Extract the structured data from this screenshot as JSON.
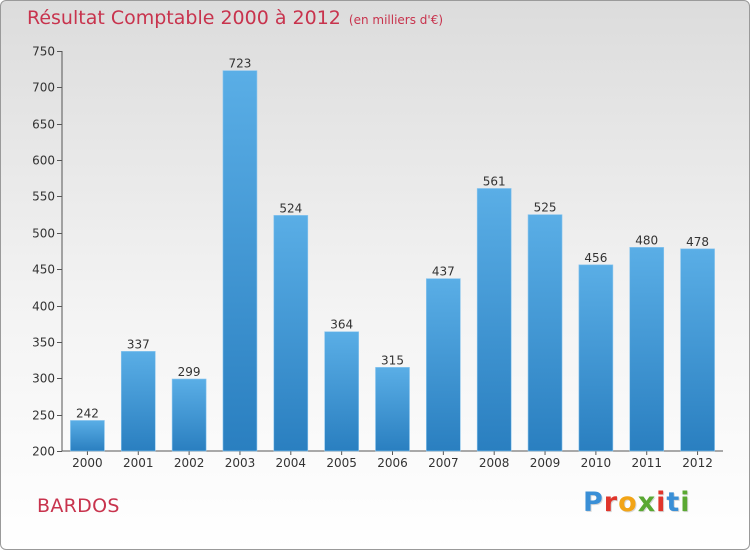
{
  "chart_data": {
    "type": "bar",
    "title": "Résultat Comptable 2000 à 2012",
    "subtitle": "(en milliers d'€)",
    "categories": [
      "2000",
      "2001",
      "2002",
      "2003",
      "2004",
      "2005",
      "2006",
      "2007",
      "2008",
      "2009",
      "2010",
      "2011",
      "2012"
    ],
    "values": [
      242,
      337,
      299,
      723,
      524,
      364,
      315,
      437,
      561,
      525,
      456,
      480,
      478
    ],
    "ylim": [
      200,
      750
    ],
    "yticks": [
      200,
      250,
      300,
      350,
      400,
      450,
      500,
      550,
      600,
      650,
      700,
      750
    ],
    "xlabel": "",
    "ylabel": "",
    "grid": false,
    "bar_color_top": "#5aaee6",
    "bar_color_bottom": "#2a7fc0"
  },
  "footer": {
    "commune": "BARDOS",
    "logo": {
      "text": "Proxiti",
      "letter_colors": [
        "#3a8fd6",
        "#e0352b",
        "#f2a416",
        "#5aa832",
        "#e0352b",
        "#3a8fd6",
        "#5aa832"
      ]
    }
  },
  "colors": {
    "title": "#c8334d",
    "axis": "#555555",
    "label": "#333333"
  }
}
